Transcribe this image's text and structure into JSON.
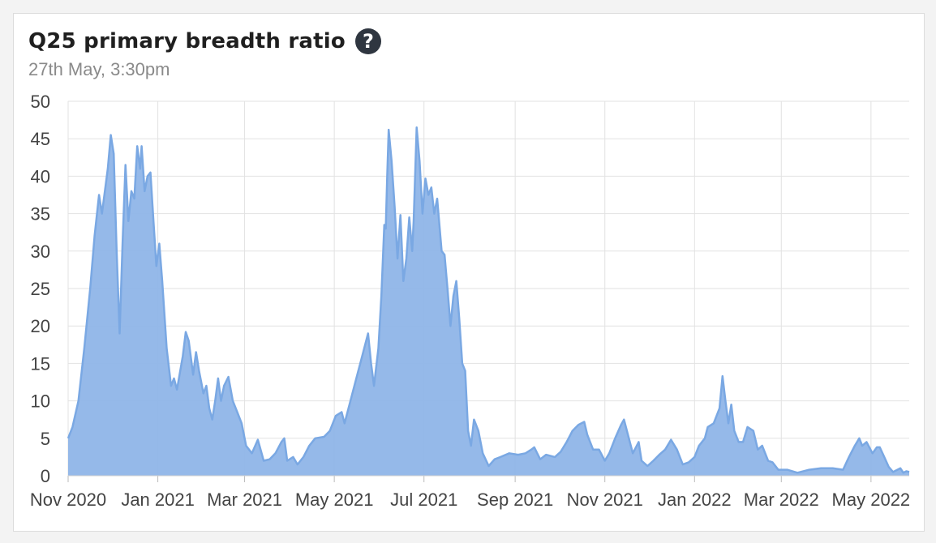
{
  "header": {
    "title": "Q25 primary breadth ratio",
    "subtitle": "27th May, 3:30pm",
    "help_icon": "question-circle-icon"
  },
  "colors": {
    "area_fill": "#8fb5e8",
    "area_stroke": "#7aa8e3",
    "grid": "#e2e2e2"
  },
  "chart_data": {
    "type": "area",
    "title": "Q25 primary breadth ratio",
    "ylim": [
      0,
      50
    ],
    "y_ticks": [
      0,
      5,
      10,
      15,
      20,
      25,
      30,
      35,
      40,
      45,
      50
    ],
    "x_ticks": [
      {
        "date": "2020-11-01",
        "label": "Nov 2020"
      },
      {
        "date": "2021-01-01",
        "label": "Jan 2021"
      },
      {
        "date": "2021-03-01",
        "label": "Mar 2021"
      },
      {
        "date": "2021-05-01",
        "label": "May 2021"
      },
      {
        "date": "2021-07-01",
        "label": "Jul 2021"
      },
      {
        "date": "2021-09-01",
        "label": "Sep 2021"
      },
      {
        "date": "2021-11-01",
        "label": "Nov 2021"
      },
      {
        "date": "2022-01-01",
        "label": "Jan 2022"
      },
      {
        "date": "2022-03-01",
        "label": "Mar 2022"
      },
      {
        "date": "2022-05-01",
        "label": "May 2022"
      }
    ],
    "xlim": [
      "2020-11-01",
      "2022-05-27"
    ],
    "grid": true,
    "legend": "none",
    "points": [
      [
        "2020-11-01",
        5
      ],
      [
        "2020-11-04",
        6.5
      ],
      [
        "2020-11-08",
        10
      ],
      [
        "2020-11-12",
        17
      ],
      [
        "2020-11-16",
        25
      ],
      [
        "2020-11-19",
        32
      ],
      [
        "2020-11-22",
        37.5
      ],
      [
        "2020-11-24",
        35
      ],
      [
        "2020-11-26",
        38
      ],
      [
        "2020-11-28",
        41
      ],
      [
        "2020-11-30",
        45.5
      ],
      [
        "2020-12-02",
        43
      ],
      [
        "2020-12-04",
        30
      ],
      [
        "2020-12-06",
        19
      ],
      [
        "2020-12-08",
        31
      ],
      [
        "2020-12-10",
        41.5
      ],
      [
        "2020-12-12",
        34
      ],
      [
        "2020-12-14",
        38
      ],
      [
        "2020-12-16",
        37
      ],
      [
        "2020-12-18",
        44
      ],
      [
        "2020-12-20",
        41
      ],
      [
        "2020-12-21",
        44
      ],
      [
        "2020-12-23",
        38
      ],
      [
        "2020-12-25",
        40
      ],
      [
        "2020-12-27",
        40.5
      ],
      [
        "2020-12-29",
        34
      ],
      [
        "2020-12-31",
        28
      ],
      [
        "2021-01-02",
        31
      ],
      [
        "2021-01-04",
        26
      ],
      [
        "2021-01-07",
        17
      ],
      [
        "2021-01-10",
        12
      ],
      [
        "2021-01-12",
        13
      ],
      [
        "2021-01-14",
        11.5
      ],
      [
        "2021-01-18",
        16
      ],
      [
        "2021-01-20",
        19.2
      ],
      [
        "2021-01-22",
        18
      ],
      [
        "2021-01-25",
        13.5
      ],
      [
        "2021-01-27",
        16.5
      ],
      [
        "2021-01-29",
        14
      ],
      [
        "2021-02-01",
        11
      ],
      [
        "2021-02-03",
        12
      ],
      [
        "2021-02-05",
        9
      ],
      [
        "2021-02-07",
        7.5
      ],
      [
        "2021-02-09",
        10
      ],
      [
        "2021-02-11",
        13
      ],
      [
        "2021-02-13",
        10
      ],
      [
        "2021-02-15",
        12
      ],
      [
        "2021-02-18",
        13.2
      ],
      [
        "2021-02-21",
        10
      ],
      [
        "2021-02-24",
        8.5
      ],
      [
        "2021-02-27",
        7
      ],
      [
        "2021-03-02",
        4
      ],
      [
        "2021-03-06",
        3
      ],
      [
        "2021-03-10",
        4.8
      ],
      [
        "2021-03-14",
        2
      ],
      [
        "2021-03-18",
        2.2
      ],
      [
        "2021-03-22",
        3
      ],
      [
        "2021-03-26",
        4.5
      ],
      [
        "2021-03-28",
        5
      ],
      [
        "2021-03-30",
        2
      ],
      [
        "2021-04-03",
        2.5
      ],
      [
        "2021-04-06",
        1.5
      ],
      [
        "2021-04-10",
        2.5
      ],
      [
        "2021-04-14",
        4
      ],
      [
        "2021-04-18",
        5
      ],
      [
        "2021-04-24",
        5.2
      ],
      [
        "2021-04-28",
        6
      ],
      [
        "2021-05-02",
        8
      ],
      [
        "2021-05-06",
        8.5
      ],
      [
        "2021-05-08",
        7
      ],
      [
        "2021-05-12",
        10
      ],
      [
        "2021-05-16",
        13
      ],
      [
        "2021-05-20",
        16
      ],
      [
        "2021-05-24",
        19
      ],
      [
        "2021-05-26",
        15
      ],
      [
        "2021-05-28",
        12
      ],
      [
        "2021-05-31",
        17
      ],
      [
        "2021-06-02",
        24
      ],
      [
        "2021-06-04",
        33.5
      ],
      [
        "2021-06-05",
        33
      ],
      [
        "2021-06-06",
        40
      ],
      [
        "2021-06-07",
        46.2
      ],
      [
        "2021-06-09",
        42
      ],
      [
        "2021-06-11",
        36
      ],
      [
        "2021-06-13",
        29
      ],
      [
        "2021-06-15",
        34.8
      ],
      [
        "2021-06-17",
        26
      ],
      [
        "2021-06-19",
        29
      ],
      [
        "2021-06-21",
        34.5
      ],
      [
        "2021-06-23",
        30
      ],
      [
        "2021-06-24",
        34
      ],
      [
        "2021-06-26",
        46.5
      ],
      [
        "2021-06-28",
        42
      ],
      [
        "2021-06-30",
        35
      ],
      [
        "2021-07-02",
        39.7
      ],
      [
        "2021-07-04",
        37.5
      ],
      [
        "2021-07-06",
        38.5
      ],
      [
        "2021-07-08",
        35
      ],
      [
        "2021-07-10",
        37
      ],
      [
        "2021-07-13",
        30
      ],
      [
        "2021-07-15",
        29.5
      ],
      [
        "2021-07-17",
        25
      ],
      [
        "2021-07-19",
        20
      ],
      [
        "2021-07-21",
        24
      ],
      [
        "2021-07-23",
        26
      ],
      [
        "2021-07-25",
        21
      ],
      [
        "2021-07-27",
        15
      ],
      [
        "2021-07-29",
        14
      ],
      [
        "2021-07-31",
        6
      ],
      [
        "2021-08-02",
        4
      ],
      [
        "2021-08-04",
        7.5
      ],
      [
        "2021-08-07",
        6
      ],
      [
        "2021-08-10",
        3
      ],
      [
        "2021-08-14",
        1.3
      ],
      [
        "2021-08-18",
        2.2
      ],
      [
        "2021-08-22",
        2.5
      ],
      [
        "2021-08-28",
        3
      ],
      [
        "2021-09-03",
        2.8
      ],
      [
        "2021-09-08",
        3
      ],
      [
        "2021-09-12",
        3.5
      ],
      [
        "2021-09-14",
        3.8
      ],
      [
        "2021-09-18",
        2.2
      ],
      [
        "2021-09-22",
        2.8
      ],
      [
        "2021-09-28",
        2.5
      ],
      [
        "2021-10-02",
        3.2
      ],
      [
        "2021-10-06",
        4.5
      ],
      [
        "2021-10-10",
        6
      ],
      [
        "2021-10-14",
        6.8
      ],
      [
        "2021-10-18",
        7.2
      ],
      [
        "2021-10-20",
        5.5
      ],
      [
        "2021-10-24",
        3.5
      ],
      [
        "2021-10-28",
        3.5
      ],
      [
        "2021-11-01",
        2
      ],
      [
        "2021-11-04",
        3
      ],
      [
        "2021-11-08",
        5
      ],
      [
        "2021-11-12",
        6.8
      ],
      [
        "2021-11-14",
        7.5
      ],
      [
        "2021-11-16",
        6
      ],
      [
        "2021-11-20",
        3
      ],
      [
        "2021-11-24",
        4.5
      ],
      [
        "2021-11-26",
        2
      ],
      [
        "2021-11-30",
        1.3
      ],
      [
        "2021-12-04",
        2
      ],
      [
        "2021-12-08",
        2.8
      ],
      [
        "2021-12-12",
        3.5
      ],
      [
        "2021-12-16",
        4.8
      ],
      [
        "2021-12-20",
        3.5
      ],
      [
        "2021-12-24",
        1.5
      ],
      [
        "2021-12-28",
        1.8
      ],
      [
        "2022-01-01",
        2.5
      ],
      [
        "2022-01-04",
        4
      ],
      [
        "2022-01-08",
        5
      ],
      [
        "2022-01-10",
        6.5
      ],
      [
        "2022-01-14",
        7
      ],
      [
        "2022-01-18",
        9
      ],
      [
        "2022-01-20",
        13.3
      ],
      [
        "2022-01-22",
        10
      ],
      [
        "2022-01-24",
        7
      ],
      [
        "2022-01-26",
        9.5
      ],
      [
        "2022-01-28",
        6
      ],
      [
        "2022-01-31",
        4.5
      ],
      [
        "2022-02-03",
        4.5
      ],
      [
        "2022-02-06",
        6.5
      ],
      [
        "2022-02-10",
        6
      ],
      [
        "2022-02-13",
        3.5
      ],
      [
        "2022-02-16",
        4
      ],
      [
        "2022-02-20",
        2
      ],
      [
        "2022-02-23",
        1.8
      ],
      [
        "2022-02-27",
        0.8
      ],
      [
        "2022-03-05",
        0.8
      ],
      [
        "2022-03-12",
        0.4
      ],
      [
        "2022-03-20",
        0.8
      ],
      [
        "2022-03-28",
        1
      ],
      [
        "2022-04-05",
        1
      ],
      [
        "2022-04-12",
        0.8
      ],
      [
        "2022-04-16",
        2.5
      ],
      [
        "2022-04-20",
        4
      ],
      [
        "2022-04-23",
        5
      ],
      [
        "2022-04-25",
        4
      ],
      [
        "2022-04-28",
        4.5
      ],
      [
        "2022-05-02",
        3
      ],
      [
        "2022-05-05",
        3.8
      ],
      [
        "2022-05-07",
        3.8
      ],
      [
        "2022-05-10",
        2.5
      ],
      [
        "2022-05-13",
        1.2
      ],
      [
        "2022-05-16",
        0.5
      ],
      [
        "2022-05-18",
        0.7
      ],
      [
        "2022-05-21",
        1
      ],
      [
        "2022-05-23",
        0.4
      ],
      [
        "2022-05-25",
        0.6
      ],
      [
        "2022-05-27",
        0.5
      ]
    ]
  }
}
